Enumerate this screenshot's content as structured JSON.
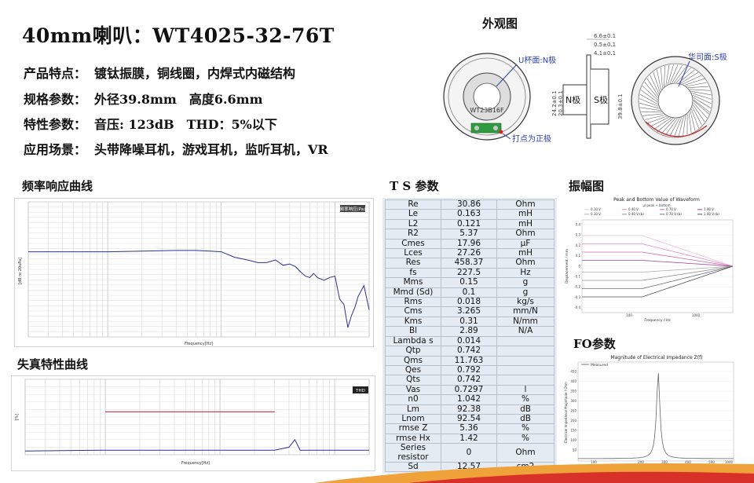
{
  "header": {
    "title": "40mm喇叭：WT4025-32-76T",
    "specs": [
      {
        "label": "产品特点：",
        "value": "镀钛振膜，铜线圈，内焊式内磁结构"
      },
      {
        "label": "规格参数：",
        "value": "外径39.8mm　高度6.6mm"
      },
      {
        "label": "特性参数：",
        "value": "音压: 123dB　THD：5%以下"
      },
      {
        "label": "应用场景：",
        "value": "头带降噪耳机，游戏耳机，监听耳机，VR"
      }
    ]
  },
  "appearance": {
    "title": "外观图",
    "label_u": "U杯面:N极",
    "label_hua": "华司面:S极",
    "label_dot": "打点为正极",
    "model_print": "WT23B16F",
    "dim_66": "6.6±0.1",
    "dim_05": "0.5±0.1",
    "dim_41": "4.1±0.1",
    "dim_242": "24.2±0.1",
    "dim_203": "20.3±0.1",
    "dim_398": "39.8±0.1",
    "n_pole": "N极",
    "s_pole": "S极"
  },
  "freq_response": {
    "title": "频率响应曲线",
    "legend_box": "频率响应(Pa)",
    "x_axis_label": "Frequency[Hz]",
    "y_axis_label": "[dB re 20uPa]"
  },
  "distortion": {
    "title": "失真特性曲线",
    "legend_box": "THD",
    "x_axis_label": "Frequency[Hz]",
    "y_axis_label": "[%]"
  },
  "ts_params": {
    "title": "T S 参数",
    "rows": [
      [
        "Re",
        "30.86",
        "Ohm"
      ],
      [
        "Le",
        "0.163",
        "mH"
      ],
      [
        "L2",
        "0.121",
        "mH"
      ],
      [
        "R2",
        "5.37",
        "Ohm"
      ],
      [
        "Cmes",
        "17.96",
        "μF"
      ],
      [
        "Lces",
        "27.26",
        "mH"
      ],
      [
        "Res",
        "458.37",
        "Ohm"
      ],
      [
        "fs",
        "227.5",
        "Hz"
      ],
      [
        "Mms",
        "0.15",
        "g"
      ],
      [
        "Mmd (Sd)",
        "0.1",
        "g"
      ],
      [
        "Rms",
        "0.018",
        "kg/s"
      ],
      [
        "Cms",
        "3.265",
        "mm/N"
      ],
      [
        "Kms",
        "0.31",
        "N/mm"
      ],
      [
        "Bl",
        "2.89",
        "N/A"
      ],
      [
        "Lambda s",
        "0.014",
        ""
      ],
      [
        "Qtp",
        "0.742",
        ""
      ],
      [
        "Qms",
        "11.763",
        ""
      ],
      [
        "Qes",
        "0.792",
        ""
      ],
      [
        "Qts",
        "0.742",
        ""
      ],
      [
        "Vas",
        "0.7297",
        "l"
      ],
      [
        "n0",
        "1.042",
        "%"
      ],
      [
        "Lm",
        "92.38",
        "dB"
      ],
      [
        "Lnom",
        "92.54",
        "dB"
      ],
      [
        "rmse Z",
        "5.36",
        "%"
      ],
      [
        "rmse Hx",
        "1.42",
        "%"
      ],
      [
        "Series resistor",
        "0",
        "Ohm"
      ],
      [
        "Sd",
        "12.57",
        "cm2"
      ]
    ]
  },
  "amplitude": {
    "title": "振幅图",
    "chart_title": "Peak and Bottom Value of Waveform",
    "legend_header": "μl peak + bottom",
    "legend": [
      "0.10 V",
      "0.40 V",
      "0.70 V",
      "1.00 V",
      "0.10 V",
      "0.40 V (b)",
      "0.70 V (b)",
      "1.00 V (b)"
    ],
    "x_axis_label": "Frequency / Hz",
    "y_axis_label": "Displacement / mm",
    "x_ticks": [
      "100",
      "1000"
    ],
    "y_ticks": [
      "0.4",
      "0.3",
      "0.2",
      "0.1",
      "0",
      "-0.1",
      "-0.2",
      "-0.3",
      "-0.4"
    ]
  },
  "fo": {
    "title": "FO参数",
    "chart_title": "Magnitude of Electrical Impedance Z(f)",
    "legend": "Measured",
    "x_axis_label": "Frequency / Hz",
    "y_axis_label": "Electrical Impedance Magnitude / Ohm",
    "y_ticks": [
      "450",
      "400",
      "350",
      "300",
      "250",
      "200",
      "150",
      "100",
      "50"
    ],
    "x_ticks": [
      "100",
      "200",
      "300",
      "400",
      "500",
      "1000"
    ]
  },
  "chart_data": [
    {
      "type": "line",
      "title": "频率响应曲线",
      "xlabel": "Frequency[Hz]",
      "ylabel": "[dB re 20uPa]",
      "x_scale": "log",
      "xlim": [
        20,
        20000
      ],
      "ylim": [
        0,
        1
      ],
      "series": [
        {
          "x": [
            20,
            50,
            100,
            200,
            400,
            600,
            800,
            1000,
            1300,
            1700,
            2100,
            2500,
            3000,
            3500,
            4000,
            4500,
            5000,
            5500,
            6000,
            6500,
            7000,
            8000,
            9000,
            10000,
            11000,
            12000,
            13000,
            14000,
            15000,
            16000,
            18000,
            20000
          ],
          "y": [
            0.63,
            0.63,
            0.63,
            0.635,
            0.64,
            0.64,
            0.635,
            0.63,
            0.59,
            0.57,
            0.55,
            0.55,
            0.57,
            0.53,
            0.54,
            0.52,
            0.48,
            0.45,
            0.44,
            0.47,
            0.44,
            0.42,
            0.44,
            0.45,
            0.28,
            0.24,
            0.07,
            0.16,
            0.22,
            0.3,
            0.38,
            0.2
          ]
        }
      ]
    },
    {
      "type": "line",
      "title": "失真特性曲线",
      "xlabel": "Frequency[Hz]",
      "ylabel": "[%]",
      "x_scale": "log",
      "xlim": [
        20,
        20000
      ],
      "series": [
        {
          "x": [
            100,
            3000
          ],
          "y": [
            0.57,
            0.57
          ]
        },
        {
          "x": [
            20,
            100,
            1000,
            3000,
            4000,
            4500,
            5000,
            6000,
            10000,
            20000
          ],
          "y": [
            0.05,
            0.06,
            0.06,
            0.06,
            0.1,
            0.2,
            0.06,
            0.06,
            0.06,
            0.06
          ]
        }
      ]
    }
  ]
}
